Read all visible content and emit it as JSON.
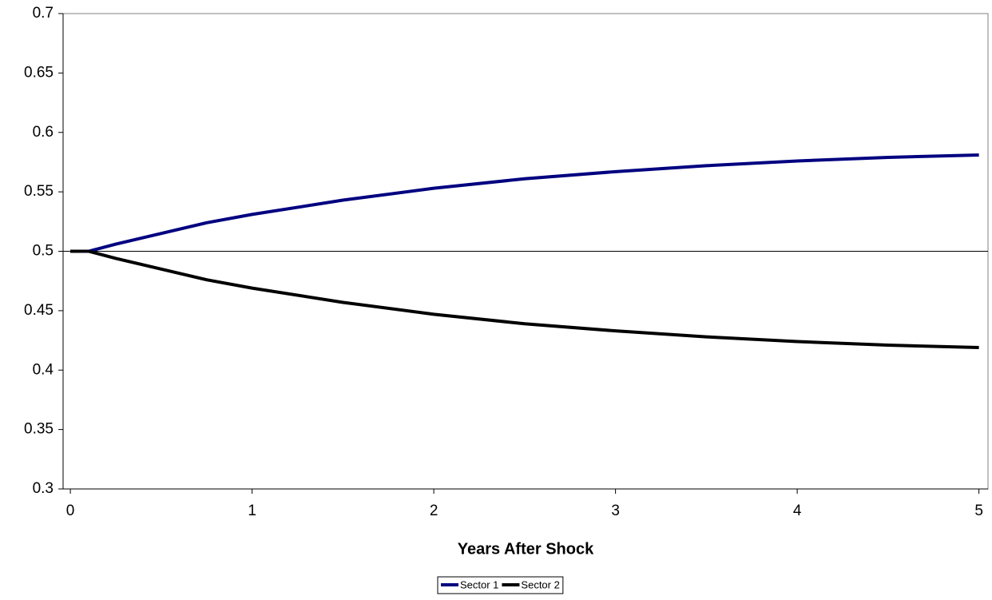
{
  "chart_data": {
    "type": "line",
    "x_label": "Years After Shock",
    "x": [
      0,
      0.1,
      0.25,
      0.5,
      0.75,
      1,
      1.5,
      2,
      2.5,
      3,
      3.5,
      4,
      4.5,
      5
    ],
    "series": [
      {
        "name": "Sector 1",
        "color": "#000080",
        "values": [
          0.5,
          0.5,
          0.506,
          0.515,
          0.524,
          0.531,
          0.543,
          0.553,
          0.561,
          0.567,
          0.572,
          0.576,
          0.579,
          0.581
        ]
      },
      {
        "name": "Sector 2",
        "color": "#000000",
        "values": [
          0.5,
          0.5,
          0.494,
          0.485,
          0.476,
          0.469,
          0.457,
          0.447,
          0.439,
          0.433,
          0.428,
          0.424,
          0.421,
          0.419
        ]
      }
    ],
    "xlim": [
      -0.04,
      5.05
    ],
    "xticks": [
      0,
      1,
      2,
      3,
      4,
      5
    ],
    "ylim": [
      0.3,
      0.7
    ],
    "yticks": [
      0.3,
      0.35,
      0.4,
      0.45,
      0.5,
      0.55,
      0.6,
      0.65,
      0.7
    ],
    "reference_line": 0.5,
    "legend": "bottom"
  }
}
